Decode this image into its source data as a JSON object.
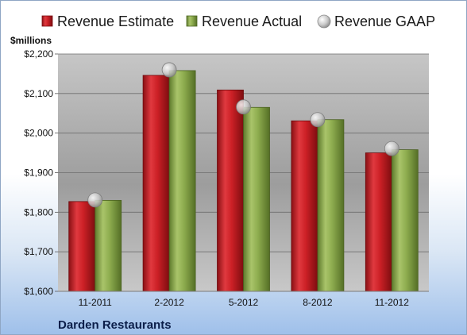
{
  "company": "Darden Restaurants",
  "units_label": "$millions",
  "colors": {
    "estimate": "#cc2026",
    "actual": "#8ead4f",
    "gaap": "#c9c9c9",
    "plot_background": "#c0c0c0"
  },
  "chart_data": {
    "type": "bar",
    "categories": [
      "11-2011",
      "2-2012",
      "5-2012",
      "8-2012",
      "11-2012"
    ],
    "series": [
      {
        "name": "Revenue Estimate",
        "kind": "bar",
        "values": [
          1827,
          2146,
          2109,
          2031,
          1950
        ]
      },
      {
        "name": "Revenue Actual",
        "kind": "bar",
        "values": [
          1830,
          2158,
          2065,
          2034,
          1958
        ]
      },
      {
        "name": "Revenue GAAP",
        "kind": "marker",
        "values": [
          1831,
          2160,
          2066,
          2034,
          1961
        ]
      }
    ],
    "ylim": [
      1600,
      2200
    ],
    "yticks": [
      1600,
      1700,
      1800,
      1900,
      2000,
      2100,
      2200
    ],
    "ytick_labels": [
      "$1,600",
      "$1,700",
      "$1,800",
      "$1,900",
      "$2,000",
      "$2,100",
      "$2,200"
    ],
    "grid": true,
    "legend_position": "top"
  }
}
